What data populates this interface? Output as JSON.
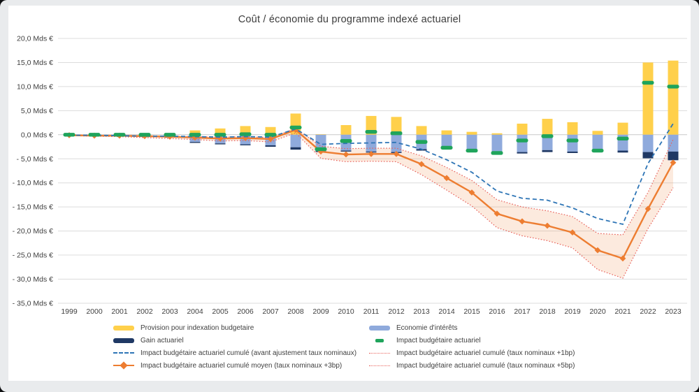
{
  "page": {
    "background": "#E9EBED",
    "card_background": "#FFFFFF"
  },
  "chart_data": {
    "type": "bar",
    "subtype": "combo bar + line, stacked bars with cumulative lines and confidence band",
    "title": "Coût / économie du programme indexé actuariel",
    "xlabel": "",
    "ylabel": "Mds €",
    "ylim": [
      -35,
      20
    ],
    "grid": "horizontal",
    "legend_position": "bottom, two columns",
    "categories": [
      1999,
      2000,
      2001,
      2002,
      2003,
      2004,
      2005,
      2006,
      2007,
      2008,
      2009,
      2010,
      2011,
      2012,
      2013,
      2014,
      2015,
      2016,
      2017,
      2018,
      2019,
      2020,
      2021,
      2022,
      2023
    ],
    "y_tick_labels": [
      "20,0 Mds €",
      "15,0 Mds €",
      "10,0 Mds €",
      "5,0 Mds €",
      "0,0 Mds €",
      "- 5,0 Mds €",
      "- 10,0 Mds €",
      "- 15,0 Mds €",
      "- 20,0 Mds €",
      "- 25,0 Mds €",
      "- 30,0 Mds €",
      "- 35,0 Mds €"
    ],
    "series": [
      {
        "name": "Provision pour indexation budgetaire",
        "kind": "bar",
        "color": "#FFD04B",
        "values": [
          0,
          0,
          0,
          0.1,
          0.3,
          0.9,
          1.3,
          1.8,
          1.6,
          4.4,
          0.1,
          2.0,
          3.9,
          3.7,
          1.8,
          0.9,
          0.6,
          0.3,
          2.3,
          3.3,
          2.6,
          0.8,
          2.5,
          15.0,
          15.4
        ]
      },
      {
        "name": "Economie d'intérêts",
        "kind": "bar",
        "color": "#8FAADC",
        "values": [
          0,
          0,
          -0.1,
          -0.3,
          -0.5,
          -1.5,
          -1.8,
          -2.0,
          -2.2,
          -2.6,
          -3.4,
          -3.3,
          -3.5,
          -3.6,
          -3.0,
          -2.5,
          -3.0,
          -3.5,
          -3.6,
          -3.2,
          -3.5,
          -3.2,
          -3.3,
          -3.6,
          -3.5
        ]
      },
      {
        "name": "Gain actuariel",
        "kind": "bar-below-economie",
        "color": "#1F3864",
        "values": [
          0,
          0,
          0,
          0,
          -0.1,
          -0.2,
          -0.2,
          -0.2,
          -0.3,
          -0.5,
          -0.2,
          -0.2,
          -0.2,
          -0.2,
          -0.3,
          -0.2,
          -0.2,
          -0.2,
          -0.3,
          -0.4,
          -0.3,
          -0.2,
          -0.4,
          -1.3,
          -1.8
        ]
      },
      {
        "name": "Impact budgétaire actuariel",
        "kind": "green-dash-marker",
        "color": "#1FA45B",
        "values": [
          0,
          0,
          0,
          0,
          0,
          0,
          0,
          0.1,
          0,
          1.5,
          -3.0,
          -1.3,
          0.6,
          0.3,
          -1.5,
          -2.7,
          -3.3,
          -3.8,
          -1.2,
          -0.3,
          -1.2,
          -3.3,
          -0.8,
          10.8,
          10.0
        ]
      },
      {
        "name": "Impact budgétaire actuariel cumulé (avant ajustement taux nominaux)",
        "kind": "line-dashed",
        "color": "#2E75B6",
        "values": [
          -0.1,
          -0.1,
          -0.2,
          -0.3,
          -0.3,
          -0.4,
          -0.5,
          -0.4,
          -0.5,
          1.2,
          -2.0,
          -1.8,
          -1.7,
          -1.6,
          -3.0,
          -5.2,
          -7.8,
          -11.7,
          -13.2,
          -13.6,
          -15.2,
          -17.4,
          -18.6,
          -6.0,
          2.3
        ]
      },
      {
        "name": "Impact budgétaire actuariel cumulé (taux nominaux +1bp)",
        "kind": "line-dotted",
        "color": "#E8625C",
        "values": [
          0,
          -0.1,
          -0.1,
          -0.2,
          -0.3,
          -0.4,
          -0.5,
          -0.4,
          -0.6,
          1.3,
          -2.4,
          -2.9,
          -2.8,
          -2.8,
          -4.4,
          -6.8,
          -9.5,
          -13.5,
          -15.0,
          -15.8,
          -17.0,
          -20.5,
          -20.8,
          -12.0,
          -1.0
        ]
      },
      {
        "name": "Impact budgétaire actuariel cumulé (taux nominaux +5bp)",
        "kind": "line-dotted",
        "color": "#E8625C",
        "values": [
          -0.2,
          -0.3,
          -0.4,
          -0.6,
          -0.8,
          -1.0,
          -1.3,
          -1.2,
          -1.5,
          0.4,
          -4.9,
          -5.6,
          -5.5,
          -5.6,
          -8.3,
          -11.5,
          -14.8,
          -19.3,
          -21.0,
          -22.0,
          -23.5,
          -28.0,
          -29.8,
          -19.5,
          -11.0
        ]
      },
      {
        "name": "Impact budgétaire actuariel cumulé moyen (taux nominaux +3bp)",
        "kind": "line-diamond",
        "color": "#ED7D31",
        "values": [
          -0.1,
          -0.2,
          -0.2,
          -0.3,
          -0.4,
          -0.6,
          -0.8,
          -0.7,
          -0.9,
          1.0,
          -3.5,
          -4.1,
          -4.0,
          -4.0,
          -6.1,
          -9.0,
          -12.0,
          -16.4,
          -18.0,
          -18.9,
          -20.3,
          -24.0,
          -25.7,
          -15.4,
          -5.8
        ]
      }
    ],
    "band": {
      "between": [
        "Impact budgétaire actuariel cumulé (taux nominaux +1bp)",
        "Impact budgétaire actuariel cumulé (taux nominaux +5bp)"
      ],
      "fill": "rgba(237,125,49,0.16)"
    },
    "colors": {
      "grid": "#DCDCDC",
      "zero_line": "#C8C8C8",
      "axis_text": "#3F3F3F"
    }
  },
  "legend": {
    "left": [
      {
        "swatch": "bar",
        "color": "#FFD04B",
        "label": "Provision pour indexation budgetaire"
      },
      {
        "swatch": "bar",
        "color": "#1F3864",
        "label": "Gain actuariel"
      },
      {
        "swatch": "dashed-line",
        "color": "#2E75B6",
        "label": "Impact budgétaire actuariel cumulé (avant ajustement taux nominaux)"
      },
      {
        "swatch": "line-diamond",
        "color": "#ED7D31",
        "label": "Impact budgétaire actuariel cumulé moyen (taux nominaux +3bp)"
      }
    ],
    "right": [
      {
        "swatch": "bar",
        "color": "#8FAADC",
        "label": "Economie d'intérêts"
      },
      {
        "swatch": "dash",
        "color": "#1FA45B",
        "label": "Impact budgétaire actuariel"
      },
      {
        "swatch": "dotted-line",
        "color": "#E8625C",
        "label": "Impact budgétaire actuariel cumulé (taux nominaux +1bp)"
      },
      {
        "swatch": "dotted-line",
        "color": "#E8625C",
        "label": "Impact budgétaire actuariel cumulé (taux nominaux +5bp)"
      }
    ]
  }
}
